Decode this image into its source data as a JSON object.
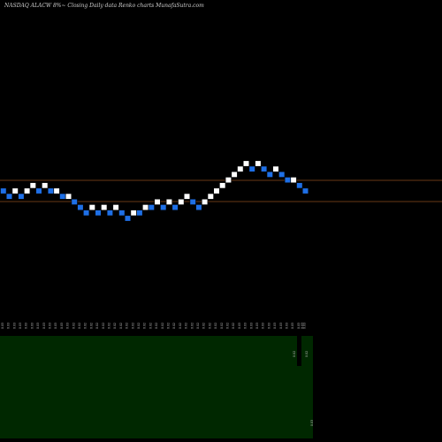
{
  "chart_data": {
    "type": "renko",
    "title": "NASDAQ ALACW 8%~  Closing Daily data  Renko  charts MunafaSutra.com",
    "colors": {
      "background": "#000000",
      "up_brick": "#ffffff",
      "down_brick": "#1e6fe6",
      "level_line": "#8b4a1e",
      "volume_fill": "#002800",
      "volume_bar": "#000000"
    },
    "level_lines": [
      "upper",
      "lower"
    ],
    "bricks": [
      {
        "dir": "down",
        "level": 0
      },
      {
        "dir": "down",
        "level": -1
      },
      {
        "dir": "up",
        "level": 0
      },
      {
        "dir": "down",
        "level": -1
      },
      {
        "dir": "up",
        "level": 0
      },
      {
        "dir": "up",
        "level": 1
      },
      {
        "dir": "down",
        "level": 0
      },
      {
        "dir": "up",
        "level": 1
      },
      {
        "dir": "down",
        "level": 0
      },
      {
        "dir": "up",
        "level": 0
      },
      {
        "dir": "down",
        "level": -1
      },
      {
        "dir": "up",
        "level": -1
      },
      {
        "dir": "down",
        "level": -2
      },
      {
        "dir": "down",
        "level": -3
      },
      {
        "dir": "down",
        "level": -4
      },
      {
        "dir": "up",
        "level": -3
      },
      {
        "dir": "down",
        "level": -4
      },
      {
        "dir": "up",
        "level": -3
      },
      {
        "dir": "down",
        "level": -4
      },
      {
        "dir": "up",
        "level": -3
      },
      {
        "dir": "down",
        "level": -4
      },
      {
        "dir": "down",
        "level": -5
      },
      {
        "dir": "up",
        "level": -4
      },
      {
        "dir": "down",
        "level": -4
      },
      {
        "dir": "up",
        "level": -3
      },
      {
        "dir": "down",
        "level": -3
      },
      {
        "dir": "up",
        "level": -2
      },
      {
        "dir": "down",
        "level": -3
      },
      {
        "dir": "up",
        "level": -2
      },
      {
        "dir": "down",
        "level": -3
      },
      {
        "dir": "up",
        "level": -2
      },
      {
        "dir": "up",
        "level": -1
      },
      {
        "dir": "down",
        "level": -2
      },
      {
        "dir": "down",
        "level": -3
      },
      {
        "dir": "up",
        "level": -2
      },
      {
        "dir": "up",
        "level": -1
      },
      {
        "dir": "up",
        "level": 0
      },
      {
        "dir": "up",
        "level": 1
      },
      {
        "dir": "up",
        "level": 2
      },
      {
        "dir": "up",
        "level": 3
      },
      {
        "dir": "up",
        "level": 4
      },
      {
        "dir": "up",
        "level": 5
      },
      {
        "dir": "down",
        "level": 4
      },
      {
        "dir": "up",
        "level": 5
      },
      {
        "dir": "down",
        "level": 4
      },
      {
        "dir": "down",
        "level": 3
      },
      {
        "dir": "up",
        "level": 4
      },
      {
        "dir": "down",
        "level": 3
      },
      {
        "dir": "down",
        "level": 2
      },
      {
        "dir": "up",
        "level": 2
      },
      {
        "dir": "down",
        "level": 1
      },
      {
        "dir": "down",
        "level": 0
      }
    ],
    "x_tick_labels": [
      "0.03",
      "0.03",
      "0.03",
      "0.03",
      "0.03",
      "0.03",
      "0.03",
      "0.03",
      "0.03",
      "0.03",
      "0.03",
      "0.03",
      "0.02",
      "0.02",
      "0.02",
      "0.02",
      "0.02",
      "0.02",
      "0.02",
      "0.02",
      "0.02",
      "0.02",
      "0.02",
      "0.02",
      "0.02",
      "0.02",
      "0.02",
      "0.02",
      "0.02",
      "0.02",
      "0.02",
      "0.02",
      "0.02",
      "0.02",
      "0.02",
      "0.02",
      "0.02",
      "0.02",
      "0.02",
      "0.02",
      "0.03",
      "0.03",
      "0.03",
      "0.03",
      "0.03",
      "0.03",
      "0.03",
      "0.03",
      "0.03",
      "0.03",
      "0.03",
      "0.03"
    ],
    "last_tick_label": "0.03",
    "volume_labels": [
      "0.02",
      "0.02",
      "0.03"
    ]
  }
}
